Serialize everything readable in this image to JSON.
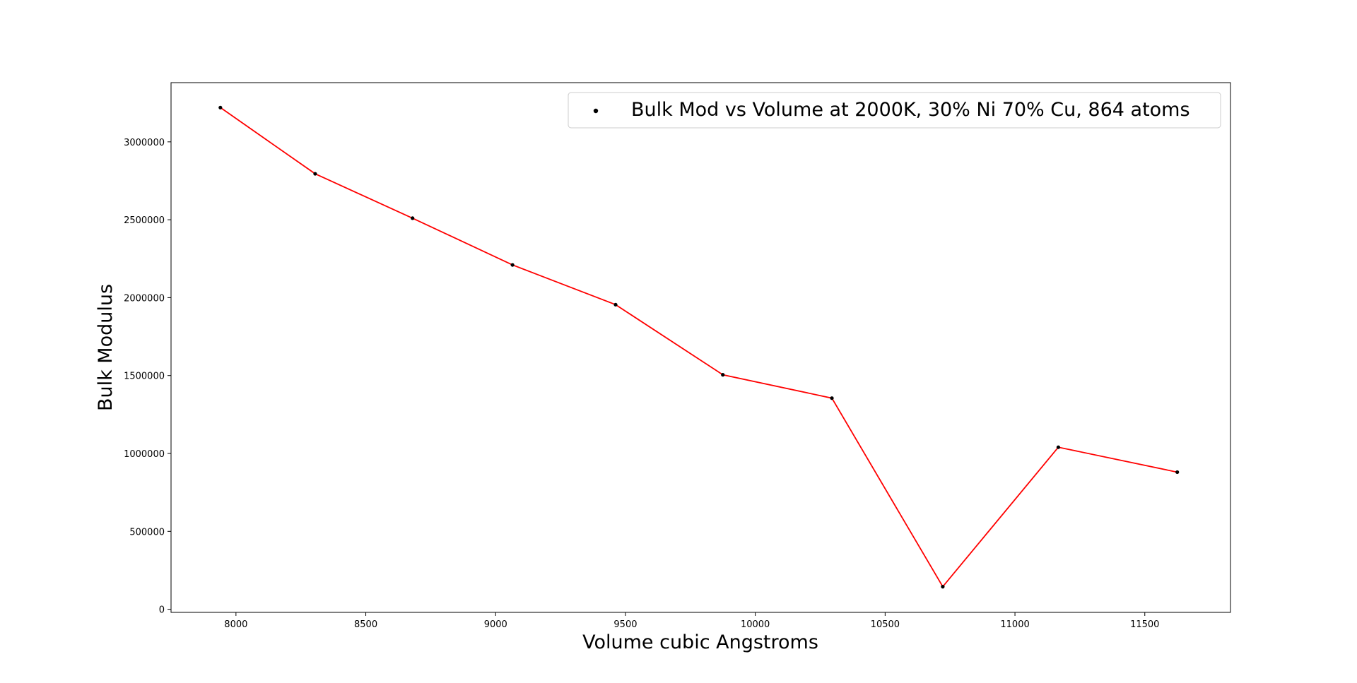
{
  "chart_data": {
    "type": "line",
    "xlabel": "Volume cubic Angstroms",
    "ylabel": "Bulk Modulus",
    "xlim": [
      7750,
      11830
    ],
    "ylim": [
      -20000,
      3380000
    ],
    "x_ticks": [
      8000,
      8500,
      9000,
      9500,
      10000,
      10500,
      11000,
      11500
    ],
    "y_ticks": [
      0,
      500000,
      1000000,
      1500000,
      2000000,
      2500000,
      3000000
    ],
    "x_tick_labels": [
      "8000",
      "8500",
      "9000",
      "9500",
      "10000",
      "10500",
      "11000",
      "11500"
    ],
    "y_tick_labels": [
      "0",
      "500000",
      "1000000",
      "1500000",
      "2000000",
      "2500000",
      "3000000"
    ],
    "grid": false,
    "legend_position": "top-right",
    "series": [
      {
        "name": "Bulk Mod vs Volume at 2000K, 30% Ni 70% Cu, 864 atoms",
        "marker_color": "#000000",
        "line_color": "#ff0000",
        "x": [
          7940,
          8305,
          8680,
          9065,
          9462,
          9875,
          10295,
          10722,
          11167,
          11625
        ],
        "y": [
          3220000,
          2795000,
          2510000,
          2210000,
          1955000,
          1505000,
          1355000,
          145000,
          1040000,
          880000
        ]
      }
    ]
  }
}
